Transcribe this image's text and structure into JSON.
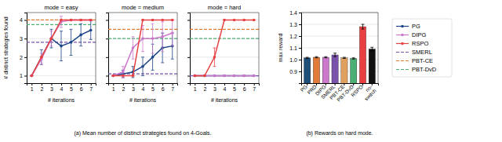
{
  "chart_data": [
    {
      "type": "line",
      "title": "mode = easy",
      "subtitle": "(a) Mean number of distinct strategies found on 4-Goals.",
      "x_label": "# iterations",
      "y_label": "# distinct strategies found",
      "x": [
        1,
        2,
        3,
        4,
        5,
        6,
        7
      ],
      "xlim": [
        0.5,
        7.5
      ],
      "xticks": [
        1,
        2,
        3,
        4,
        5,
        6,
        7
      ],
      "ylim": [
        0.6,
        4.4
      ],
      "yticks": [
        1,
        2,
        3,
        4
      ],
      "grid": true,
      "series": [
        {
          "name": "PG",
          "color": "#1c4587",
          "marker": "circle",
          "values": [
            1.0,
            2.0,
            3.0,
            2.6,
            2.8,
            3.2,
            3.45
          ],
          "errors": [
            0.0,
            0.4,
            0.5,
            0.8,
            0.7,
            0.6,
            0.5
          ]
        },
        {
          "name": "DIPG",
          "color": "#cc79cc",
          "marker": "circle",
          "values": [
            1.0,
            1.9,
            3.0,
            3.9,
            4.0,
            4.0,
            4.0
          ],
          "errors": [
            0.0,
            0.3,
            0.4,
            0.3,
            0.0,
            0.0,
            0.0
          ]
        },
        {
          "name": "RSPO",
          "color": "#e84040",
          "marker": "circle",
          "values": [
            1.0,
            2.0,
            3.0,
            4.0,
            4.0,
            4.0,
            4.0
          ],
          "errors": [
            0.0,
            0.0,
            0.0,
            0.0,
            0.0,
            0.0,
            0.0
          ]
        },
        {
          "name": "SMERL",
          "color": "#7b52ab",
          "type": "hline",
          "line_style": "dashed",
          "value": 2.8
        },
        {
          "name": "PBT-CE",
          "color": "#e07b30",
          "type": "hline",
          "line_style": "dashed",
          "value": 4.0
        },
        {
          "name": "PBT-DvD",
          "color": "#4caf75",
          "type": "hline",
          "line_style": "dashed",
          "value": 3.75
        }
      ]
    },
    {
      "type": "line",
      "title": "mode = medium",
      "x_label": "# iterations",
      "x": [
        1,
        2,
        3,
        4,
        5,
        6,
        7
      ],
      "xlim": [
        0.5,
        7.5
      ],
      "xticks": [
        1,
        2,
        3,
        4,
        5,
        6,
        7
      ],
      "ylim": [
        0.6,
        4.4
      ],
      "yticks": [
        1,
        2,
        3,
        4
      ],
      "grid": true,
      "tick_labels": "x",
      "series": [
        {
          "name": "PG",
          "color": "#1c4587",
          "marker": "circle",
          "values": [
            1.0,
            1.1,
            1.2,
            1.5,
            2.0,
            2.5,
            2.6
          ],
          "errors": [
            0.0,
            0.2,
            0.3,
            0.5,
            0.7,
            0.8,
            0.7
          ]
        },
        {
          "name": "DIPG",
          "color": "#cc79cc",
          "marker": "circle",
          "values": [
            1.0,
            1.2,
            2.5,
            3.0,
            3.0,
            3.1,
            3.3
          ],
          "errors": [
            0.0,
            0.3,
            0.6,
            0.7,
            0.8,
            0.8,
            0.7
          ]
        },
        {
          "name": "RSPO",
          "color": "#e84040",
          "marker": "circle",
          "values": [
            1.0,
            1.0,
            1.0,
            4.0,
            4.0,
            4.0,
            4.0
          ],
          "errors": [
            0.0,
            0.0,
            0.0,
            0.0,
            0.0,
            0.0,
            0.0
          ]
        },
        {
          "name": "SMERL",
          "color": "#7b52ab",
          "type": "hline",
          "line_style": "dashed",
          "value": 1.1
        },
        {
          "name": "PBT-CE",
          "color": "#e07b30",
          "type": "hline",
          "line_style": "dashed",
          "value": 3.5
        },
        {
          "name": "PBT-DvD",
          "color": "#4caf75",
          "type": "hline",
          "line_style": "dashed",
          "value": 3.0
        }
      ]
    },
    {
      "type": "line",
      "title": "mode = hard",
      "x_label": "# iterations",
      "x": [
        1,
        2,
        3,
        4,
        5,
        6,
        7
      ],
      "xlim": [
        0.5,
        7.5
      ],
      "xticks": [
        1,
        2,
        3,
        4,
        5,
        6,
        7
      ],
      "ylim": [
        0.6,
        4.4
      ],
      "yticks": [
        1,
        2,
        3,
        4
      ],
      "grid": true,
      "tick_labels": "x",
      "legend": "right",
      "series": [
        {
          "name": "PG",
          "color": "#1c4587",
          "marker": "circle",
          "values": [
            1.0,
            1.0,
            1.0,
            1.0,
            1.0,
            1.0,
            1.0
          ],
          "errors": [
            0.0,
            0.0,
            0.0,
            0.0,
            0.0,
            0.0,
            0.0
          ]
        },
        {
          "name": "DIPG",
          "color": "#cc79cc",
          "marker": "circle",
          "values": [
            1.0,
            1.0,
            1.0,
            1.0,
            1.0,
            1.0,
            1.0
          ],
          "errors": [
            0.0,
            0.0,
            0.0,
            0.0,
            0.0,
            0.0,
            0.0
          ]
        },
        {
          "name": "RSPO",
          "color": "#e84040",
          "marker": "circle",
          "values": [
            1.0,
            1.0,
            2.0,
            4.0,
            4.0,
            4.0,
            4.0
          ],
          "errors": [
            0.0,
            0.0,
            0.5,
            0.0,
            0.0,
            0.0,
            0.0
          ]
        },
        {
          "name": "SMERL",
          "color": "#7b52ab",
          "type": "hline",
          "line_style": "dashed",
          "value": 1.0
        },
        {
          "name": "PBT-CE",
          "color": "#e07b30",
          "type": "hline",
          "line_style": "dashed",
          "value": 3.5
        },
        {
          "name": "PBT-DvD",
          "color": "#4caf75",
          "type": "hline",
          "line_style": "dashed",
          "value": 3.0
        }
      ]
    },
    {
      "type": "bar",
      "subtitle": "(b) Rewards on hard mode.",
      "y_label": "max reward",
      "categories": [
        "PG",
        "PRD",
        "DIPG",
        "SMERL",
        "PBT-CE",
        "PBT-DvD",
        "RSPO",
        "no-\nswitch"
      ],
      "values": [
        1.015,
        1.02,
        1.02,
        1.04,
        1.015,
        1.01,
        1.28,
        1.09
      ],
      "errors": [
        0.005,
        0.005,
        0.005,
        0.015,
        0.005,
        0.005,
        0.02,
        0.015
      ],
      "colors": [
        "#1f4e79",
        "#e07b39",
        "#cc79cc",
        "#7b52ab",
        "#e0a060",
        "#4caf75",
        "#e84040",
        "#111111"
      ],
      "ylim": [
        0.8,
        1.4
      ],
      "yticks": [
        0.9,
        {
          "value": 1.0,
          "label": "1.0"
        },
        1.1,
        1.2,
        1.3,
        1.4
      ],
      "grid": true
    }
  ]
}
